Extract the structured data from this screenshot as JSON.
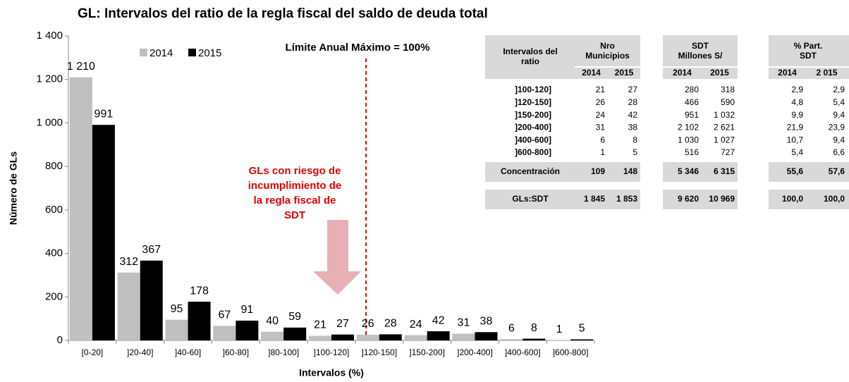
{
  "chart_data": {
    "type": "bar",
    "title": "GL: Intervalos del ratio de la regla fiscal del saldo de deuda total",
    "x_label": "Intervalos (%)",
    "y_label": "Número de GLs",
    "categories": [
      "[0-20]",
      "]20-40]",
      "]40-60]",
      "]60-80]",
      "]80-100]",
      "]100-120]",
      "]120-150]",
      "]150-200]",
      "]200-400]",
      "]400-600]",
      "]600-800]"
    ],
    "series": [
      {
        "name": "2014",
        "color": "#bfbfbf",
        "values": [
          1210,
          312,
          95,
          67,
          40,
          21,
          26,
          24,
          31,
          6,
          1
        ],
        "value_labels": [
          "1 210",
          "312",
          "95",
          "67",
          "40",
          "21",
          "26",
          "24",
          "31",
          "6",
          "1"
        ]
      },
      {
        "name": "2015",
        "color": "#000000",
        "values": [
          991,
          367,
          178,
          91,
          59,
          27,
          28,
          42,
          38,
          8,
          5
        ],
        "value_labels": [
          "991",
          "367",
          "178",
          "91",
          "59",
          "27",
          "28",
          "42",
          "38",
          "8",
          "5"
        ]
      }
    ],
    "ylim": [
      0,
      1400
    ],
    "yticks": [
      0,
      200,
      400,
      600,
      800,
      {
        "value": 1000,
        "label": "1 000"
      },
      {
        "value": 1200,
        "label": "1 200"
      },
      {
        "value": 1400,
        "label": "1 400"
      }
    ],
    "legend": "top-left",
    "annotations": {
      "limit": "Límite Anual Máximo = 100%",
      "risk": [
        "GLs con riesgo de",
        "incumplimiento de",
        "la regla fiscal de",
        "SDT"
      ]
    }
  },
  "table": {
    "header": [
      "Intervalos del",
      "ratio"
    ],
    "groups": [
      [
        "Nro",
        "Municipios"
      ],
      [
        "SDT",
        "Millones S/"
      ],
      [
        "% Part.",
        "SDT"
      ]
    ],
    "years": [
      "2014",
      "2015",
      "2014",
      "2015",
      "2014",
      "2 015"
    ],
    "rows": [
      [
        "]100-120]",
        "21",
        "27",
        "280",
        "318",
        "2,9",
        "2,9"
      ],
      [
        "]120-150]",
        "26",
        "28",
        "466",
        "590",
        "4,8",
        "5,4"
      ],
      [
        "]150-200]",
        "24",
        "42",
        "951",
        "1 032",
        "9,9",
        "9,4"
      ],
      [
        "]200-400]",
        "31",
        "38",
        "2 102",
        "2 621",
        "21,9",
        "23,9"
      ],
      [
        "]400-600]",
        "6",
        "8",
        "1 030",
        "1 027",
        "10,7",
        "9,4"
      ],
      [
        "]600-800]",
        "1",
        "5",
        "516",
        "727",
        "5,4",
        "6,6"
      ]
    ],
    "summary": [
      [
        "Concentración",
        "109",
        "148",
        "5 346",
        "6 315",
        "55,6",
        "57,6"
      ],
      [
        "GLs:SDT",
        "1 845",
        "1 853",
        "9 620",
        "10 969",
        "100,0",
        "100,0"
      ]
    ]
  }
}
